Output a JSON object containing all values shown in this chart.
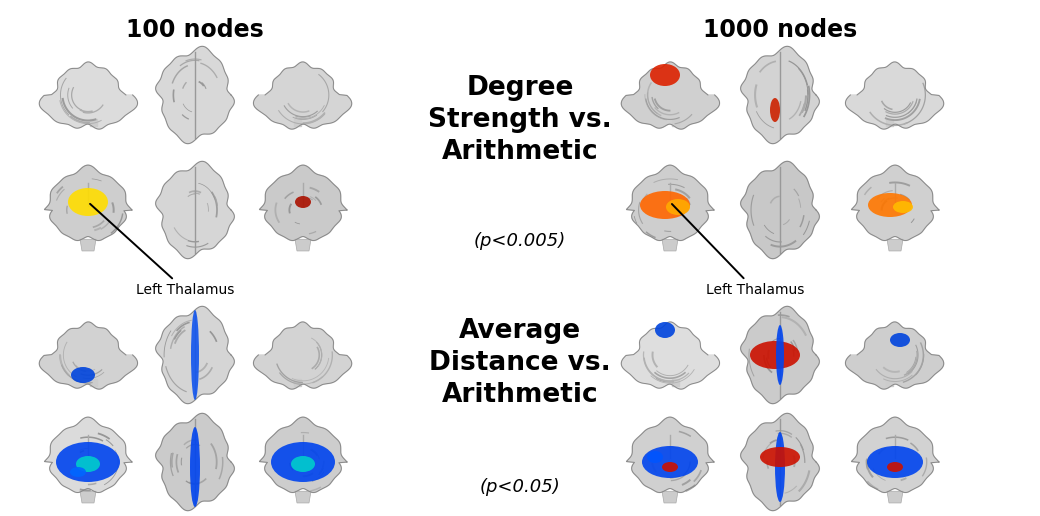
{
  "title_left": "100 nodes",
  "title_right": "1000 nodes",
  "degree_label": "Degree\nStrength vs.\nArithmetic",
  "degree_p": "(p<0.005)",
  "avg_label": "Average\nDistance vs.\nArithmetic",
  "avg_p": "(p<0.05)",
  "annotation_text": "Left Thalamus",
  "bg_color": "#ffffff",
  "title_fontsize": 17,
  "label_fontsize": 19,
  "p_fontsize": 13,
  "annotation_fontsize": 10,
  "fig_width": 10.4,
  "fig_height": 5.16,
  "dpi": 100
}
